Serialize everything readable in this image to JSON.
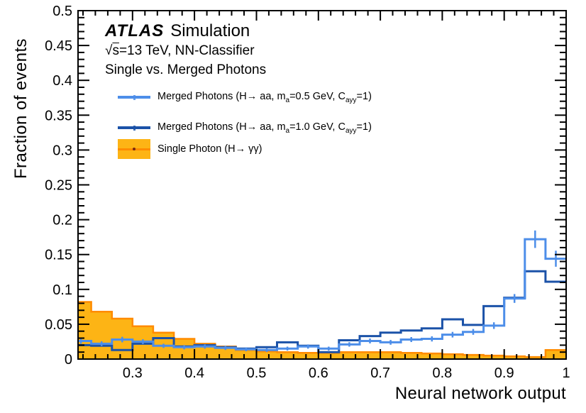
{
  "header": {
    "experiment": "ATLAS",
    "experiment_suffix": "Simulation",
    "info_sqrt": "√",
    "info_s": "s",
    "info_rest": "=13 TeV, NN-Classifier",
    "subtitle": "Single vs. Merged Photons"
  },
  "axes": {
    "x_title": "Neural network output",
    "y_title": "Fraction of events"
  },
  "colors": {
    "merged_05": "#4d8ee9",
    "merged_10": "#1b52a8",
    "single_fill": "#fdb415",
    "single_line": "#ff8b00",
    "frame": "#000000"
  },
  "legend": {
    "items": [
      {
        "name": "merged-photons-ma05",
        "marker": "line",
        "color": "#4d8ee9",
        "parts": [
          {
            "t": "Merged Photons (H→ aa, m"
          },
          {
            "t": "a",
            "sub": true
          },
          {
            "t": "=0.5 GeV, C"
          },
          {
            "t": "ayy",
            "sub": true
          },
          {
            "t": "=1)"
          }
        ]
      },
      {
        "name": "merged-photons-ma10",
        "marker": "line",
        "color": "#1b52a8",
        "parts": [
          {
            "t": "Merged Photons (H→ aa, m"
          },
          {
            "t": "a",
            "sub": true
          },
          {
            "t": "=1.0 GeV, C"
          },
          {
            "t": "ayy",
            "sub": true
          },
          {
            "t": "=1)"
          }
        ]
      },
      {
        "name": "single-photon",
        "marker": "box",
        "color": "#fdb415",
        "parts": [
          {
            "t": "Single Photon (H→ γγ)"
          }
        ]
      }
    ]
  },
  "chart_data": {
    "type": "bar",
    "subtype": "step-histogram",
    "title": "Single vs. Merged Photons",
    "xlabel": "Neural network output",
    "ylabel": "Fraction of events",
    "xlim": [
      0.212,
      1.0
    ],
    "ylim": [
      0,
      0.5
    ],
    "grid": false,
    "legend_position": "top-left",
    "x_major_ticks": {
      "values": [
        0.3,
        0.4,
        0.5,
        0.6,
        0.7,
        0.8,
        0.9,
        1.0
      ],
      "labels": [
        "0.3",
        "0.4",
        "0.5",
        "0.6",
        "0.7",
        "0.8",
        "0.9",
        "1"
      ]
    },
    "x_minor_step": 0.02,
    "y_major_ticks": {
      "values": [
        0,
        0.05,
        0.1,
        0.15,
        0.2,
        0.25,
        0.3,
        0.35,
        0.4,
        0.45,
        0.5
      ],
      "labels": [
        "0",
        "0.05",
        "0.1",
        "0.15",
        "0.2",
        "0.25",
        "0.3",
        "0.35",
        "0.4",
        "0.45",
        "0.5"
      ]
    },
    "y_minor_step": 0.01,
    "bin_edges": [
      0.2,
      0.2333,
      0.2667,
      0.3,
      0.3333,
      0.3667,
      0.4,
      0.4333,
      0.4667,
      0.5,
      0.5333,
      0.5667,
      0.6,
      0.6333,
      0.6667,
      0.7,
      0.7333,
      0.7667,
      0.8,
      0.8333,
      0.8667,
      0.9,
      0.9333,
      0.9667,
      1.0
    ],
    "series": [
      {
        "name": "Single Photon (H→ γγ)",
        "style": "filled-step",
        "fill": "#fdb415",
        "line": "#ff8b00",
        "values": [
          0.082,
          0.068,
          0.058,
          0.047,
          0.038,
          0.029,
          0.022,
          0.018,
          0.013,
          0.011,
          0.01,
          0.009,
          0.009,
          0.01,
          0.01,
          0.01,
          0.009,
          0.008,
          0.007,
          0.006,
          0.005,
          0.004,
          0.003,
          0.013
        ]
      },
      {
        "name": "Merged Photons (H→ aa, ma=1.0 GeV, Cayy=1)",
        "style": "step",
        "line": "#1b52a8",
        "values": [
          0.02,
          0.019,
          0.013,
          0.022,
          0.03,
          0.018,
          0.02,
          0.017,
          0.015,
          0.017,
          0.024,
          0.019,
          0.01,
          0.027,
          0.033,
          0.038,
          0.041,
          0.044,
          0.057,
          0.049,
          0.076,
          0.088,
          0.126,
          0.111
        ]
      },
      {
        "name": "Merged Photons (H→ aa, ma=0.5 GeV, Cayy=1)",
        "style": "step-with-errors",
        "line": "#4d8ee9",
        "values": [
          0.026,
          0.022,
          0.028,
          0.025,
          0.019,
          0.017,
          0.018,
          0.016,
          0.014,
          0.013,
          0.015,
          0.018,
          0.015,
          0.021,
          0.026,
          0.024,
          0.028,
          0.029,
          0.035,
          0.039,
          0.048,
          0.087,
          0.172,
          0.144
        ],
        "errors": [
          0.004,
          0.0035,
          0.004,
          0.0035,
          0.003,
          0.003,
          0.003,
          0.003,
          0.0028,
          0.0027,
          0.0028,
          0.003,
          0.0028,
          0.0032,
          0.0035,
          0.0034,
          0.0036,
          0.0037,
          0.004,
          0.0042,
          0.0047,
          0.0063,
          0.0125,
          0.0115
        ]
      }
    ]
  }
}
